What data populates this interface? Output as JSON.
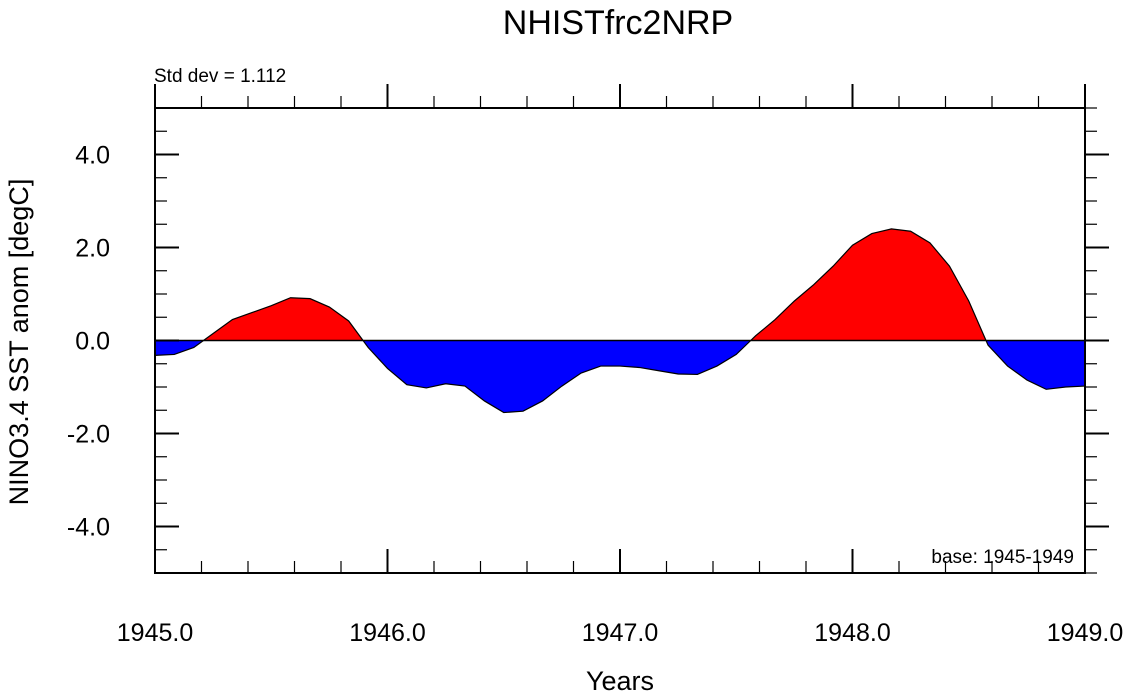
{
  "chart_data": {
    "type": "area",
    "title": "NHISTfrc2NRP",
    "xlabel": "Years",
    "ylabel": "NINO3.4 SST anom [degC]",
    "left_annotation": "Std dev = 1.112",
    "right_annotation": "base: 1945-1949",
    "xlim": [
      1945.0,
      1949.0
    ],
    "ylim": [
      -5.0,
      5.0
    ],
    "x_ticks": [
      1945.0,
      1946.0,
      1947.0,
      1948.0,
      1949.0
    ],
    "x_tick_labels": [
      "1945.0",
      "1946.0",
      "1947.0",
      "1948.0",
      "1949.0"
    ],
    "y_ticks": [
      4.0,
      2.0,
      0.0,
      -2.0,
      -4.0
    ],
    "y_tick_labels": [
      "4.0",
      "2.0",
      "0.0",
      "-2.0",
      "-4.0"
    ],
    "positive_color": "#ff0000",
    "negative_color": "#0000ff",
    "series": [
      {
        "name": "NINO3.4 SST anomaly",
        "x": [
          1945.0,
          1945.083,
          1945.167,
          1945.25,
          1945.333,
          1945.417,
          1945.5,
          1945.583,
          1945.667,
          1945.75,
          1945.833,
          1945.917,
          1946.0,
          1946.083,
          1946.167,
          1946.25,
          1946.333,
          1946.417,
          1946.5,
          1946.583,
          1946.667,
          1946.75,
          1946.833,
          1946.917,
          1947.0,
          1947.083,
          1947.167,
          1947.25,
          1947.333,
          1947.417,
          1947.5,
          1947.583,
          1947.667,
          1947.75,
          1947.833,
          1947.917,
          1948.0,
          1948.083,
          1948.167,
          1948.25,
          1948.333,
          1948.417,
          1948.5,
          1948.583,
          1948.667,
          1948.75,
          1948.833,
          1948.917,
          1949.0
        ],
        "values": [
          -0.32,
          -0.3,
          -0.15,
          0.15,
          0.45,
          0.6,
          0.75,
          0.92,
          0.9,
          0.72,
          0.42,
          -0.15,
          -0.6,
          -0.95,
          -1.02,
          -0.93,
          -0.98,
          -1.3,
          -1.55,
          -1.52,
          -1.3,
          -0.98,
          -0.7,
          -0.55,
          -0.55,
          -0.58,
          -0.65,
          -0.72,
          -0.73,
          -0.55,
          -0.3,
          0.1,
          0.45,
          0.85,
          1.2,
          1.6,
          2.05,
          2.3,
          2.4,
          2.35,
          2.1,
          1.6,
          0.85,
          -0.1,
          -0.55,
          -0.85,
          -1.05,
          -1.0,
          -0.98
        ]
      }
    ]
  }
}
